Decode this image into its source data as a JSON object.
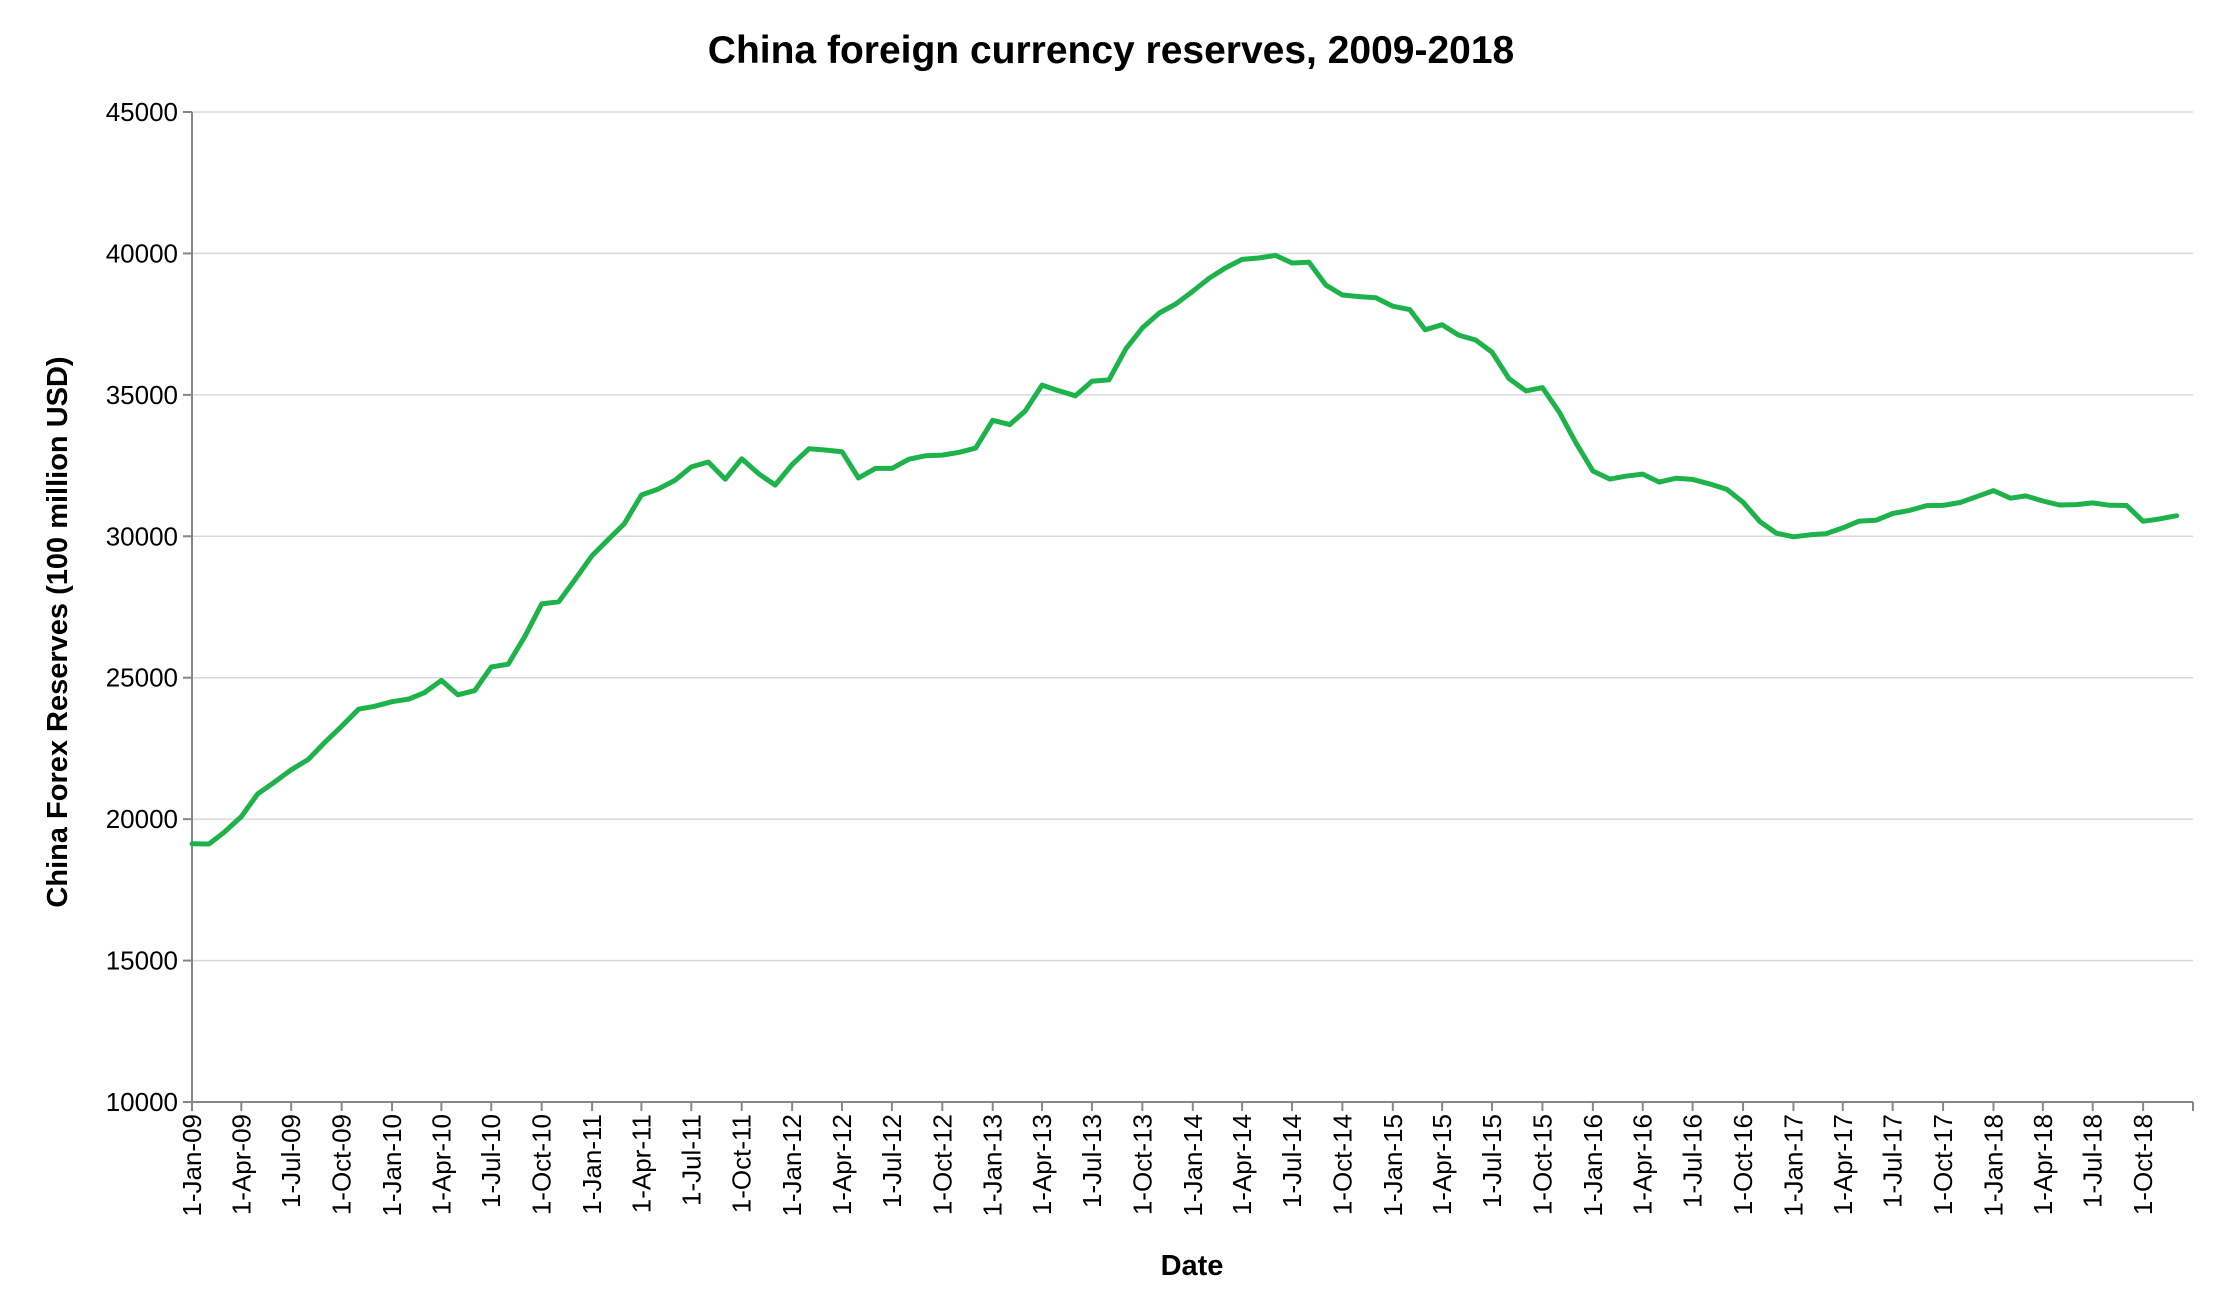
{
  "chart_data": {
    "type": "line",
    "title": "China foreign currency reserves, 2009-2018",
    "xlabel": "Date",
    "ylabel": "China Forex Reserves (100 million USD)",
    "ylim": [
      10000,
      45000
    ],
    "yticks": [
      10000,
      15000,
      20000,
      25000,
      30000,
      35000,
      40000,
      45000
    ],
    "xlim": [
      "2009-01-01",
      "2018-12-31"
    ],
    "x_tick_labels": [
      "1-Jan-09",
      "1-Apr-09",
      "1-Jul-09",
      "1-Oct-09",
      "1-Jan-10",
      "1-Apr-10",
      "1-Jul-10",
      "1-Oct-10",
      "1-Jan-11",
      "1-Apr-11",
      "1-Jul-11",
      "1-Oct-11",
      "1-Jan-12",
      "1-Apr-12",
      "1-Jul-12",
      "1-Oct-12",
      "1-Jan-13",
      "1-Apr-13",
      "1-Jul-13",
      "1-Oct-13",
      "1-Jan-14",
      "1-Apr-14",
      "1-Jul-14",
      "1-Oct-14",
      "1-Jan-15",
      "1-Apr-15",
      "1-Jul-15",
      "1-Oct-15",
      "1-Jan-16",
      "1-Apr-16",
      "1-Jul-16",
      "1-Oct-16",
      "1-Jan-17",
      "1-Apr-17",
      "1-Jul-17",
      "1-Oct-17",
      "1-Jan-18",
      "1-Apr-18",
      "1-Jul-18",
      "1-Oct-18"
    ],
    "grid": true,
    "legend": "none",
    "series_color": "#1db34a",
    "series": [
      {
        "x": [
          "2009-01-01",
          "2009-02-01",
          "2009-03-01",
          "2009-04-01",
          "2009-05-01",
          "2009-06-01",
          "2009-07-01",
          "2009-08-01",
          "2009-09-01",
          "2009-10-01",
          "2009-11-01",
          "2009-12-01",
          "2010-01-01",
          "2010-02-01",
          "2010-03-01",
          "2010-04-01",
          "2010-05-01",
          "2010-06-01",
          "2010-07-01",
          "2010-08-01",
          "2010-09-01",
          "2010-10-01",
          "2010-11-01",
          "2010-12-01",
          "2011-01-01",
          "2011-02-01",
          "2011-03-01",
          "2011-04-01",
          "2011-05-01",
          "2011-06-01",
          "2011-07-01",
          "2011-08-01",
          "2011-09-01",
          "2011-10-01",
          "2011-11-01",
          "2011-12-01",
          "2012-01-01",
          "2012-02-01",
          "2012-03-01",
          "2012-04-01",
          "2012-05-01",
          "2012-06-01",
          "2012-07-01",
          "2012-08-01",
          "2012-09-01",
          "2012-10-01",
          "2012-11-01",
          "2012-12-01",
          "2013-01-01",
          "2013-02-01",
          "2013-03-01",
          "2013-04-01",
          "2013-05-01",
          "2013-06-01",
          "2013-07-01",
          "2013-08-01",
          "2013-09-01",
          "2013-10-01",
          "2013-11-01",
          "2013-12-01",
          "2014-01-01",
          "2014-02-01",
          "2014-03-01",
          "2014-04-01",
          "2014-05-01",
          "2014-06-01",
          "2014-07-01",
          "2014-08-01",
          "2014-09-01",
          "2014-10-01",
          "2014-11-01",
          "2014-12-01",
          "2015-01-01",
          "2015-02-01",
          "2015-03-01",
          "2015-04-01",
          "2015-05-01",
          "2015-06-01",
          "2015-07-01",
          "2015-08-01",
          "2015-09-01",
          "2015-10-01",
          "2015-11-01",
          "2015-12-01",
          "2016-01-01",
          "2016-02-01",
          "2016-03-01",
          "2016-04-01",
          "2016-05-01",
          "2016-06-01",
          "2016-07-01",
          "2016-08-01",
          "2016-09-01",
          "2016-10-01",
          "2016-11-01",
          "2016-12-01",
          "2017-01-01",
          "2017-02-01",
          "2017-03-01",
          "2017-04-01",
          "2017-05-01",
          "2017-06-01",
          "2017-07-01",
          "2017-08-01",
          "2017-09-01",
          "2017-10-01",
          "2017-11-01",
          "2017-12-01",
          "2018-01-01",
          "2018-02-01",
          "2018-03-01",
          "2018-04-01",
          "2018-05-01",
          "2018-06-01",
          "2018-07-01",
          "2018-08-01",
          "2018-09-01",
          "2018-10-01",
          "2018-11-01",
          "2018-12-01"
        ],
        "values": [
          19130,
          19120,
          19537,
          20089,
          20895,
          21316,
          21746,
          22110,
          22726,
          23283,
          23888,
          23992,
          24153,
          24247,
          24471,
          24906,
          24396,
          24543,
          25380,
          25479,
          26483,
          27609,
          27684,
          28473,
          29317,
          29914,
          30447,
          31461,
          31663,
          31975,
          32453,
          32625,
          32017,
          32738,
          32209,
          31811,
          32536,
          33097,
          33050,
          32990,
          32061,
          32400,
          32400,
          32726,
          32850,
          32870,
          32970,
          33116,
          34100,
          33950,
          34427,
          35345,
          35148,
          34967,
          35478,
          35530,
          36627,
          37366,
          37895,
          38213,
          38666,
          39138,
          39481,
          39788,
          39838,
          39932,
          39662,
          39688,
          38877,
          38529,
          38473,
          38430,
          38134,
          38015,
          37300,
          37481,
          37111,
          36938,
          36513,
          35574,
          35141,
          35255,
          34383,
          33304,
          32309,
          32023,
          32126,
          32197,
          31917,
          32052,
          32011,
          31852,
          31664,
          31206,
          30516,
          30105,
          29982,
          30051,
          30091,
          30295,
          30536,
          30568,
          30807,
          30915,
          31085,
          31092,
          31193,
          31399,
          31614,
          31345,
          31428,
          31248,
          31106,
          31121,
          31179,
          31097,
          31088,
          30531,
          30617,
          30727
        ]
      }
    ]
  }
}
